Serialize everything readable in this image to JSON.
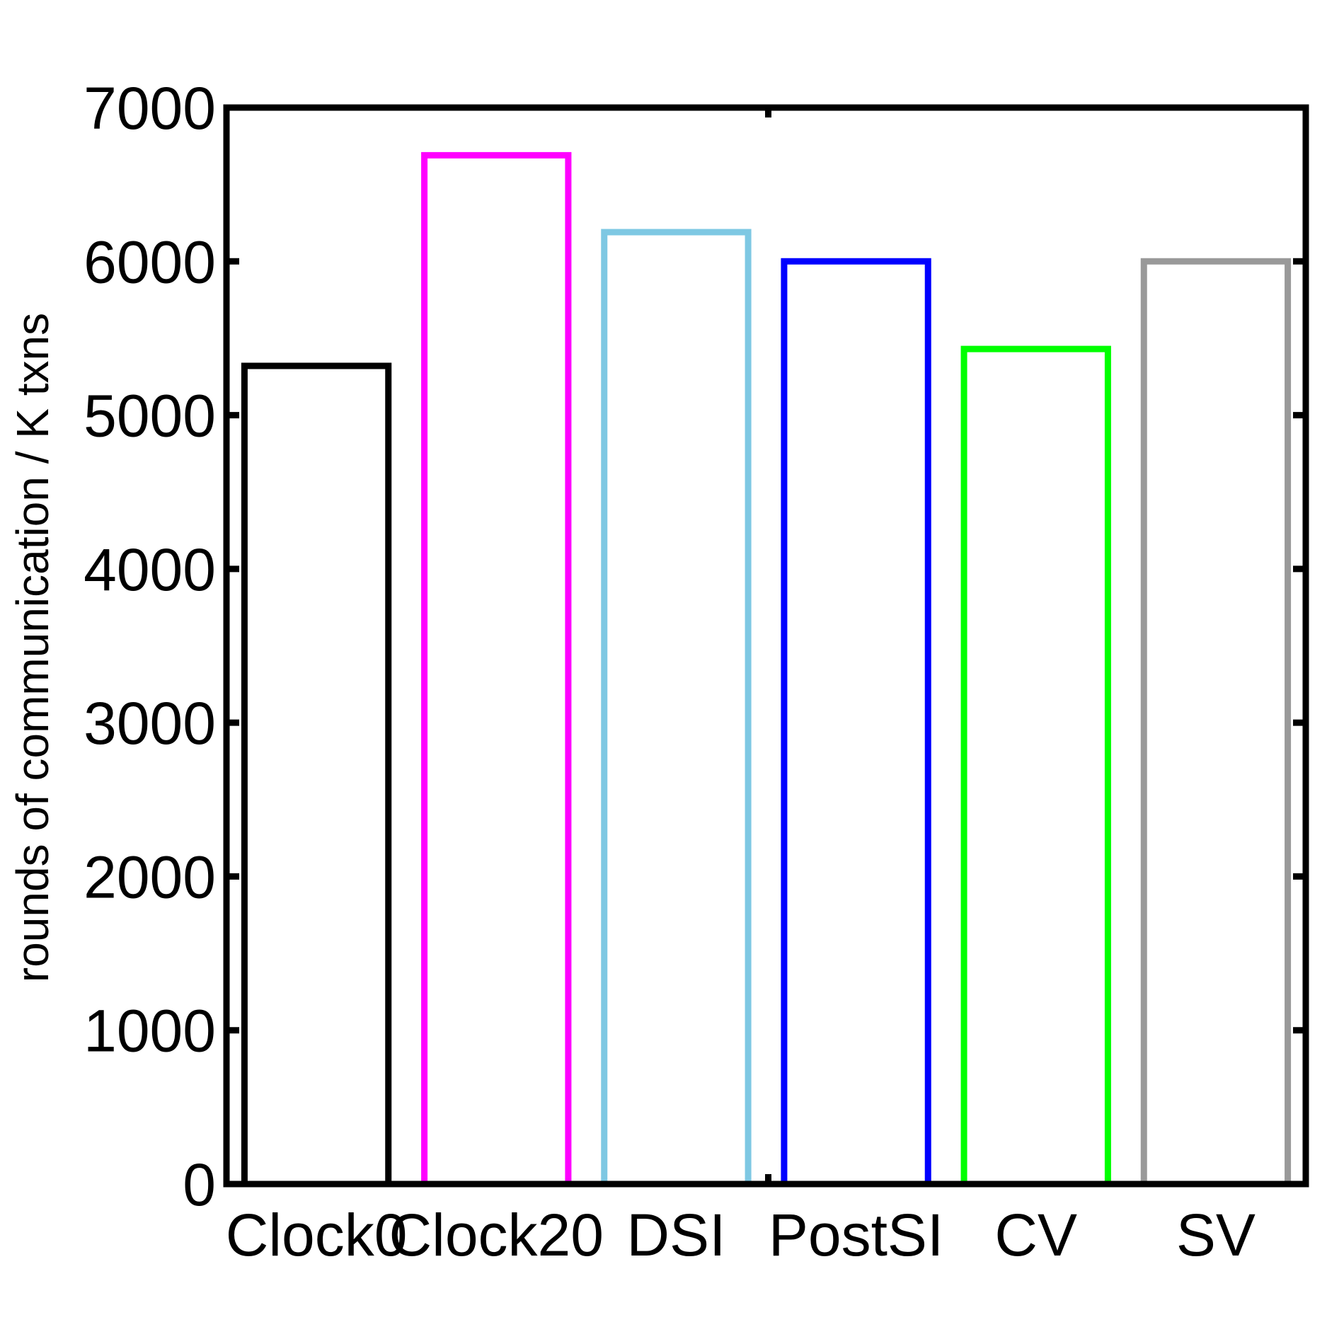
{
  "chart_data": {
    "type": "bar",
    "title": "",
    "xlabel": "",
    "ylabel": "rounds of communication / K txns",
    "categories": [
      "Clock0",
      "Clock20",
      "DSI",
      "PostSI",
      "CV",
      "SV"
    ],
    "values": [
      5320,
      6690,
      6190,
      6000,
      5430,
      6000
    ],
    "colors": [
      "#000000",
      "#ff00ff",
      "#7ec8e3",
      "#0000ff",
      "#00ff00",
      "#999999"
    ],
    "ylim": [
      0,
      7000
    ],
    "yticks": [
      "0",
      "1000",
      "2000",
      "3000",
      "4000",
      "5000",
      "6000",
      "7000"
    ],
    "grid": false,
    "bar_style": "outline"
  }
}
